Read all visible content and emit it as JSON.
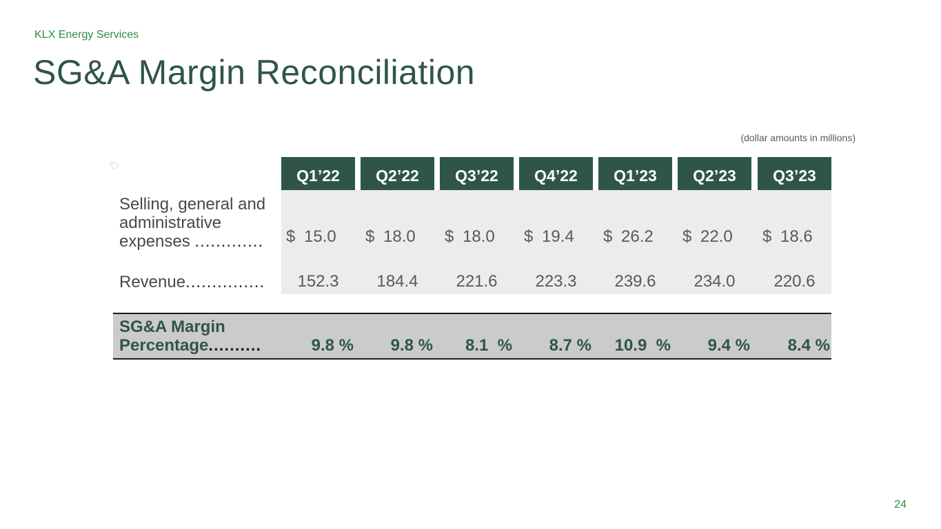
{
  "header": {
    "company": "KLX Energy Services",
    "title": "SG&A Margin Reconciliation",
    "units_note": "(dollar amounts in millions)"
  },
  "table": {
    "columns": [
      "Q1’22",
      "Q2’22",
      "Q3’22",
      "Q4’22",
      "Q1’23",
      "Q2’23",
      "Q3’23"
    ],
    "sga": {
      "label_line1": "Selling, general and",
      "label_line2": "administrative",
      "label_line3": "expenses",
      "dots": ".............",
      "currency": "$",
      "values": [
        "15.0",
        "18.0",
        "18.0",
        "19.4",
        "26.2",
        "22.0",
        "18.6"
      ]
    },
    "revenue": {
      "label": "Revenue",
      "dots": "...............",
      "values": [
        "152.3",
        "184.4",
        "221.6",
        "223.3",
        "239.6",
        "234.0",
        "220.6"
      ]
    },
    "margin": {
      "label_line1": "SG&A Margin",
      "label_line2": "Percentage",
      "dots": "..........",
      "values": [
        "9.8 %",
        "9.8 %",
        "8.1  %",
        "8.7 %",
        "10.9  %",
        "9.4 %",
        "8.4 %"
      ]
    }
  },
  "footer": {
    "page_number": "24"
  },
  "colors": {
    "brand_dark": "#2f5549",
    "brand_green": "#2e8b47",
    "band_gray": "#ececec",
    "margin_gray": "#cbcbcb"
  },
  "icons": [
    "tag-icon"
  ]
}
